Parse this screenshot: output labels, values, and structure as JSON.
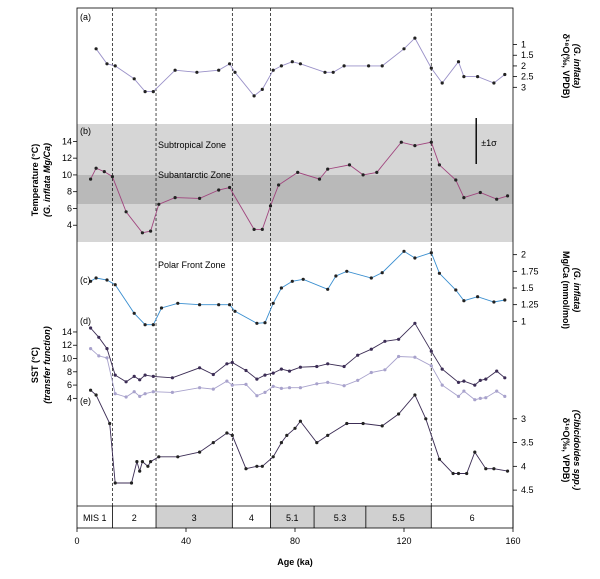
{
  "chart_data": {
    "type": "line",
    "x_axis": {
      "label": "Age (ka)",
      "range": [
        0,
        160
      ],
      "ticks": [
        0,
        40,
        80,
        120,
        160
      ]
    },
    "mis_boundaries": [
      13,
      29,
      57,
      71,
      130
    ],
    "mis_stages": [
      {
        "label": "MIS 1",
        "from": 0,
        "to": 13,
        "shaded": false
      },
      {
        "label": "2",
        "from": 13,
        "to": 29,
        "shaded": false
      },
      {
        "label": "3",
        "from": 29,
        "to": 57,
        "shaded": true
      },
      {
        "label": "4",
        "from": 57,
        "to": 71,
        "shaded": false
      },
      {
        "label": "5.1",
        "from": 71,
        "to": 87,
        "shaded": true
      },
      {
        "label": "5.3",
        "from": 87,
        "to": 106,
        "shaded": true
      },
      {
        "label": "5.5",
        "from": 106,
        "to": 130,
        "shaded": true
      },
      {
        "label": "6",
        "from": 130,
        "to": 160,
        "shaded": false
      }
    ],
    "zones": [
      {
        "label": "Subtropical Zone",
        "temp_range": [
          10,
          15
        ]
      },
      {
        "label": "Subantarctic Zone",
        "temp_range": [
          6.5,
          10
        ]
      },
      {
        "label": "Polar Front Zone",
        "temp_range": [
          2,
          6.5
        ]
      }
    ],
    "error_bar_label": "±1σ",
    "panels": [
      {
        "id": "a",
        "label": "(a)",
        "side": "right",
        "ylabel": "δ¹⁸O(‰, VPDB)",
        "ylabel2": "(G. inflata)",
        "yticks": [
          1,
          1.5,
          2,
          2.5,
          3
        ],
        "ylim": [
          0.6,
          3.5
        ],
        "inverted": true,
        "color": "#9a91c8",
        "x": [
          7,
          11,
          14,
          21,
          25,
          28,
          36,
          44,
          52,
          56,
          58,
          65,
          68,
          72,
          75,
          79,
          82,
          91,
          94,
          98,
          107,
          112,
          120,
          124,
          130,
          134,
          140,
          142,
          147,
          153,
          157
        ],
        "y": [
          1.2,
          1.9,
          2.0,
          2.6,
          3.2,
          3.2,
          2.2,
          2.3,
          2.2,
          1.9,
          2.3,
          3.4,
          3.1,
          2.2,
          2.0,
          1.8,
          1.9,
          2.3,
          2.3,
          2.0,
          2.0,
          2.0,
          1.2,
          0.7,
          2.1,
          2.8,
          1.8,
          2.5,
          2.5,
          2.8,
          2.4
        ]
      },
      {
        "id": "b",
        "label": "(b)",
        "side": "left",
        "ylabel": "Temperature (°C)",
        "ylabel2": "(G. inflata Mg/Ca)",
        "yticks": [
          4,
          6,
          8,
          10,
          12,
          14
        ],
        "ylim": [
          2,
          15
        ],
        "inverted": false,
        "color": "#a0457e",
        "x": [
          5,
          7,
          10,
          13,
          18,
          24,
          27,
          30,
          36,
          45,
          52,
          56,
          65,
          68,
          71,
          74,
          81,
          89,
          92,
          100,
          105,
          110,
          119,
          124,
          130,
          133,
          139,
          142,
          148,
          154,
          158
        ],
        "y": [
          9.5,
          10.8,
          10.4,
          9.8,
          5.6,
          3.1,
          3.3,
          6.5,
          7.3,
          7.2,
          8.2,
          8.5,
          3.5,
          3.5,
          6.3,
          8.8,
          10.3,
          9.5,
          10.7,
          11.2,
          10.0,
          10.3,
          13.9,
          13.5,
          13.9,
          11.2,
          9.4,
          7.3,
          7.9,
          7.1,
          7.5
        ]
      },
      {
        "id": "c",
        "label": "(c)",
        "side": "right",
        "ylabel": "Mg/Ca (mmol/mol)",
        "ylabel2": "(G. inflata)",
        "yticks": [
          1,
          1.25,
          1.5,
          1.75,
          2
        ],
        "ylim": [
          0.75,
          2.1
        ],
        "inverted": false,
        "color": "#3a8fd0",
        "x": [
          5,
          7,
          11,
          14,
          21,
          25,
          28,
          31,
          37,
          45,
          52,
          56,
          58,
          66,
          69,
          72,
          75,
          79,
          83,
          92,
          95,
          99,
          108,
          112,
          120,
          124,
          130,
          133,
          139,
          142,
          147,
          153,
          157
        ],
        "y": [
          1.6,
          1.65,
          1.62,
          1.55,
          1.12,
          0.95,
          0.95,
          1.2,
          1.27,
          1.25,
          1.25,
          1.25,
          1.15,
          0.97,
          0.98,
          1.27,
          1.5,
          1.6,
          1.63,
          1.48,
          1.68,
          1.75,
          1.65,
          1.73,
          2.05,
          1.95,
          2.03,
          1.72,
          1.47,
          1.31,
          1.37,
          1.29,
          1.32
        ]
      },
      {
        "id": "d",
        "label": "(d)",
        "side": "left",
        "ylabel": "SST (°C)",
        "ylabel2": "(transfer function)",
        "yticks": [
          4,
          6,
          8,
          10,
          12,
          14
        ],
        "ylim": [
          3,
          15.5
        ],
        "inverted": false,
        "series": [
          {
            "color": "#3c2d55",
            "x": [
              5,
              8,
              11,
              14,
              18,
              21,
              23,
              25,
              28,
              35,
              45,
              50,
              55,
              57,
              62,
              66,
              69,
              72,
              75,
              78,
              82,
              88,
              92,
              98,
              103,
              108,
              113,
              118,
              124,
              130,
              134,
              140,
              142,
              146,
              148,
              150,
              154,
              157
            ],
            "y": [
              14.6,
              13.2,
              11.5,
              7.5,
              6.5,
              7.3,
              6.8,
              7.5,
              7.3,
              7.1,
              8.6,
              7.6,
              9.2,
              9.4,
              8.2,
              6.9,
              7.5,
              7.8,
              8.4,
              8.1,
              8.7,
              8.8,
              9.2,
              8.8,
              10.5,
              11.4,
              12.6,
              12.9,
              15.3,
              11.1,
              8.4,
              6.4,
              6.6,
              6.0,
              6.7,
              6.9,
              8.1,
              7.1
            ]
          },
          {
            "color": "#a8a2cc",
            "x": [
              5,
              8,
              11,
              14,
              18,
              21,
              23,
              25,
              28,
              35,
              45,
              50,
              55,
              57,
              62,
              66,
              69,
              72,
              75,
              78,
              82,
              88,
              92,
              98,
              103,
              108,
              113,
              118,
              124,
              130,
              134,
              140,
              142,
              146,
              148,
              150,
              154,
              157
            ],
            "y": [
              11.5,
              10.4,
              10.1,
              4.7,
              4.2,
              5.0,
              4.3,
              4.7,
              5.0,
              4.9,
              5.6,
              5.4,
              6.6,
              6.0,
              6.1,
              4.4,
              4.9,
              5.8,
              5.5,
              5.6,
              5.6,
              6.2,
              6.4,
              5.9,
              6.7,
              7.9,
              8.3,
              10.3,
              10.2,
              8.9,
              6.0,
              4.3,
              5.1,
              3.8,
              4.0,
              4.1,
              5.1,
              4.3
            ]
          }
        ]
      },
      {
        "id": "e",
        "label": "(e)",
        "side": "right",
        "ylabel": "δ¹⁸O(‰, VPDB)",
        "ylabel2": "(Cibicidoides spp.)",
        "yticks": [
          3,
          3.5,
          4,
          4.5
        ],
        "ylim": [
          2.5,
          4.75
        ],
        "inverted": true,
        "color": "#3c2d55",
        "x": [
          5,
          7,
          12,
          14,
          20,
          22,
          23,
          24,
          26,
          27,
          30,
          37,
          45,
          50,
          55,
          57,
          62,
          66,
          68,
          72,
          75,
          77,
          80,
          82,
          88,
          92,
          99,
          105,
          112,
          118,
          124,
          128,
          133,
          138,
          140,
          143,
          146,
          150,
          153,
          158
        ],
        "y": [
          2.4,
          2.5,
          3.1,
          4.35,
          4.35,
          3.9,
          4.1,
          3.9,
          4.0,
          3.9,
          3.8,
          3.8,
          3.7,
          3.5,
          3.3,
          3.35,
          4.05,
          4.0,
          4.0,
          3.8,
          3.5,
          3.35,
          3.2,
          3.05,
          3.5,
          3.35,
          3.1,
          3.1,
          3.15,
          2.9,
          2.5,
          3.0,
          3.85,
          4.15,
          4.15,
          4.15,
          3.7,
          4.05,
          4.05,
          4.1
        ]
      }
    ]
  }
}
